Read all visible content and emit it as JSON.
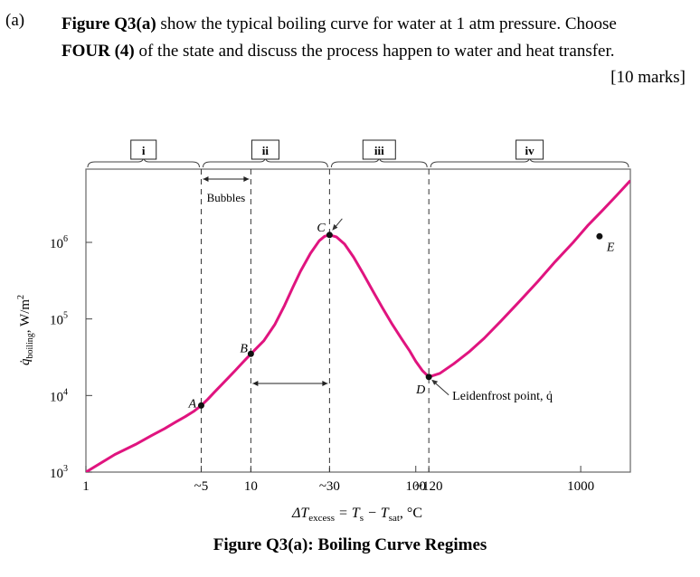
{
  "question": {
    "label": "(a)",
    "figure_ref": "Figure Q3(a)",
    "line1_rest": " show the typical boiling curve for water at 1 atm pressure. Choose",
    "line2_bold": "FOUR (4)",
    "line2_rest": " of the state and discuss the process happen to water and heat transfer.",
    "marks": "[10 marks]"
  },
  "figure_caption": "Figure Q3(a): Boiling Curve Regimes",
  "chart_data": {
    "type": "line",
    "title": "",
    "x_scale": "log",
    "y_scale": "log",
    "xlim": [
      1,
      2000
    ],
    "ylim": [
      1000,
      4000000
    ],
    "x_tick_labels": [
      {
        "x": 1,
        "label": "1"
      },
      {
        "x": 5,
        "label": "~5"
      },
      {
        "x": 10,
        "label": "10"
      },
      {
        "x": 30,
        "label": "~30"
      },
      {
        "x": 100,
        "label": "100"
      },
      {
        "x": 120,
        "label": "~120"
      },
      {
        "x": 1000,
        "label": "1000"
      }
    ],
    "y_tick_labels": [
      {
        "y": 1000,
        "base": "10",
        "exp": "3"
      },
      {
        "y": 10000,
        "base": "10",
        "exp": "4"
      },
      {
        "y": 100000,
        "base": "10",
        "exp": "5"
      },
      {
        "y": 1000000,
        "base": "10",
        "exp": "6"
      }
    ],
    "xlabel": {
      "main": "ΔT",
      "sub1": "excess",
      "mid": " = T",
      "sub2": "s",
      "mid2": " − T",
      "sub3": "sat",
      "tail": ", °C"
    },
    "ylabel": {
      "main": "q̇",
      "sub": "boiling",
      "tail": ", W/m",
      "sup": "2"
    },
    "series": [
      {
        "color": "#e0147f",
        "x": [
          1,
          1.5,
          2,
          2.5,
          3,
          3.5,
          4,
          4.5,
          5,
          5.5,
          6,
          7,
          8,
          9,
          10,
          11,
          12,
          14,
          16,
          18,
          20,
          23,
          26,
          28,
          30,
          33,
          37,
          42,
          48,
          55,
          63,
          72,
          82,
          92,
          100,
          110,
          120,
          140,
          170,
          210,
          260,
          330,
          420,
          550,
          700,
          900,
          1100,
          1350,
          1650,
          2000
        ],
        "y": [
          1000,
          1700,
          2300,
          3000,
          3700,
          4500,
          5300,
          6200,
          7400,
          9000,
          11000,
          15500,
          21000,
          27500,
          35000,
          43000,
          52000,
          85000,
          150000,
          260000,
          420000,
          720000,
          1050000,
          1200000,
          1250000,
          1180000,
          950000,
          640000,
          390000,
          230000,
          138000,
          85000,
          55000,
          38000,
          28000,
          21000,
          17500,
          19500,
          26000,
          37000,
          56000,
          95000,
          165000,
          310000,
          560000,
          1000000,
          1650000,
          2600000,
          4100000,
          6400000
        ]
      }
    ],
    "points": [
      {
        "label": "A",
        "x": 5,
        "y": 7400
      },
      {
        "label": "B",
        "x": 10,
        "y": 35000
      },
      {
        "label": "C",
        "x": 30,
        "y": 1250000
      },
      {
        "label": "D",
        "x": 120,
        "y": 17500
      },
      {
        "label": "E",
        "x": 1300,
        "y": 1200000
      }
    ],
    "regimes": [
      {
        "id": "i",
        "label": "i"
      },
      {
        "id": "ii",
        "label": "ii"
      },
      {
        "id": "iii",
        "label": "iii"
      },
      {
        "id": "iv",
        "label": "iv"
      }
    ],
    "annotations": {
      "bubbles": "Bubbles",
      "leidenfrost": "Leidenfrost point, q̇"
    },
    "grid": false,
    "legend": "none"
  }
}
